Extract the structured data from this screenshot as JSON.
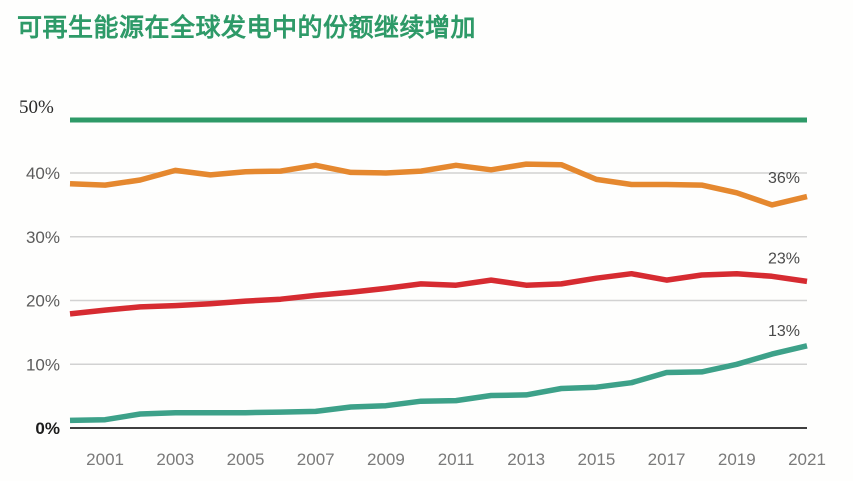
{
  "title": "可再生能源在全球发电中的份额继续增加",
  "colors": {
    "title_green": "#2E9A68",
    "cap_line_green": "#2E9A68",
    "orange": "#E5882F",
    "red": "#D62B31",
    "teal": "#3DA189",
    "gridline": "#D2D2D2",
    "zero_line": "#3F3F3F",
    "y_label": "#5C5C5C",
    "zero_label": "#1C1C1C",
    "x_label": "#7A7A7A",
    "end_label": "#4A4A4A"
  },
  "y_axis": {
    "top_label": "50%",
    "tick_labels": [
      "40%",
      "30%",
      "20%",
      "10%",
      "0%"
    ],
    "tick_values": [
      40,
      30,
      20,
      10,
      0
    ]
  },
  "x_axis": {
    "tick_labels": [
      "2001",
      "2003",
      "2005",
      "2007",
      "2009",
      "2011",
      "2013",
      "2015",
      "2017",
      "2019",
      "2021"
    ],
    "tick_years": [
      2001,
      2003,
      2005,
      2007,
      2009,
      2011,
      2013,
      2015,
      2017,
      2019,
      2021
    ]
  },
  "chart_data": {
    "type": "line",
    "title": "可再生能源在全球发电中的份额继续增加",
    "xlabel": "",
    "ylabel": "",
    "ylim": [
      0,
      50
    ],
    "grid": true,
    "legend": "none",
    "x": [
      2000,
      2001,
      2002,
      2003,
      2004,
      2005,
      2006,
      2007,
      2008,
      2009,
      2010,
      2011,
      2012,
      2013,
      2014,
      2015,
      2016,
      2017,
      2018,
      2019,
      2020,
      2021
    ],
    "series": [
      {
        "name": "orange",
        "color_key": "orange",
        "end_label": "36%",
        "values": [
          38.3,
          38.1,
          38.9,
          40.4,
          39.7,
          40.2,
          40.3,
          41.2,
          40.1,
          40.0,
          40.3,
          41.2,
          40.5,
          41.4,
          41.3,
          39.0,
          38.2,
          38.2,
          38.1,
          36.9,
          35.0,
          36.3
        ]
      },
      {
        "name": "red",
        "color_key": "red",
        "end_label": "23%",
        "values": [
          17.9,
          18.5,
          19.0,
          19.2,
          19.5,
          19.9,
          20.2,
          20.8,
          21.3,
          21.9,
          22.6,
          22.4,
          23.2,
          22.4,
          22.6,
          23.5,
          24.2,
          23.2,
          24.0,
          24.2,
          23.8,
          23.0
        ]
      },
      {
        "name": "teal",
        "color_key": "teal",
        "end_label": "13%",
        "values": [
          1.2,
          1.3,
          2.2,
          2.4,
          2.4,
          2.4,
          2.5,
          2.6,
          3.3,
          3.5,
          4.2,
          4.3,
          5.1,
          5.2,
          6.2,
          6.4,
          7.1,
          8.7,
          8.8,
          10.0,
          11.6,
          12.9
        ]
      }
    ]
  }
}
